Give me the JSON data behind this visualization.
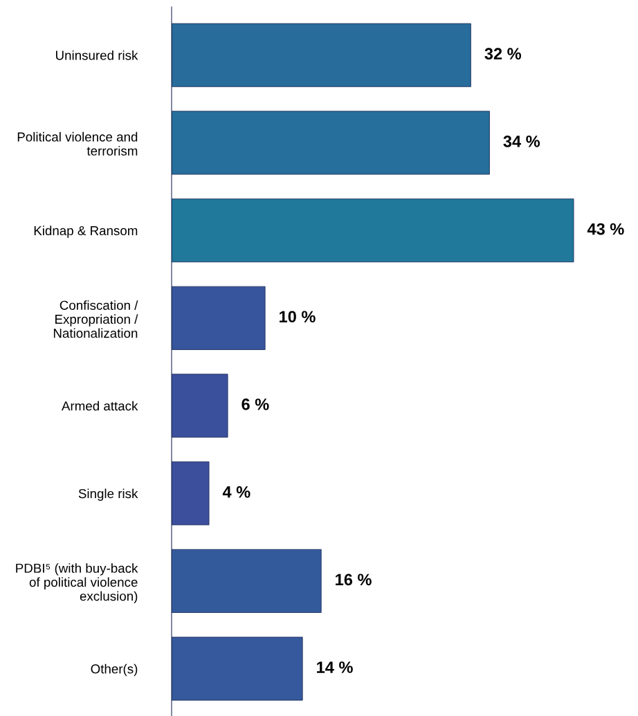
{
  "chart_data": {
    "type": "bar",
    "orientation": "horizontal",
    "categories": [
      "Uninsured risk",
      "Political violence and\nterrorism",
      "Kidnap & Ransom",
      "Confiscation /\nExpropriation /\nNationalization",
      "Armed attack",
      "Single risk",
      "PDBI⁵ (with buy-back\nof political violence\nexclusion)",
      "Other(s)"
    ],
    "values": [
      32,
      34,
      43,
      10,
      6,
      4,
      16,
      14
    ],
    "value_labels": [
      "32 %",
      "34 %",
      "43 %",
      "10 %",
      "6 %",
      "4 %",
      "16 %",
      "14 %"
    ],
    "colors": [
      "#286c9b",
      "#266e9b",
      "#20789b",
      "#37559c",
      "#3b509c",
      "#3c4f9c",
      "#335b9c",
      "#35599c"
    ],
    "tick_labels": "y",
    "grid": false,
    "legend": false
  }
}
